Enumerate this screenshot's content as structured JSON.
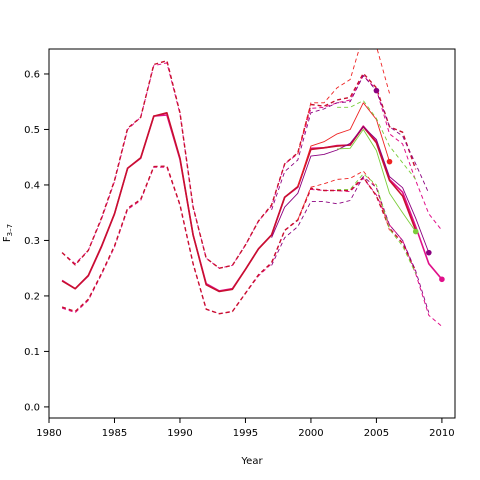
{
  "chart_data": {
    "type": "line",
    "title": "",
    "xlabel": "Year",
    "ylabel": "F3-7",
    "ylabel_main": "F",
    "ylabel_sub": "3–7",
    "xlim": [
      1980,
      2011
    ],
    "ylim": [
      -0.02,
      0.645
    ],
    "xticks": [
      1980,
      1985,
      1990,
      1995,
      2000,
      2005,
      2010
    ],
    "yticks": [
      0.0,
      0.1,
      0.2,
      0.3,
      0.4,
      0.5,
      0.6
    ],
    "xtick_labels": [
      "1980",
      "1985",
      "1990",
      "1995",
      "2000",
      "2005",
      "2010"
    ],
    "ytick_labels": [
      "0.0",
      "0.1",
      "0.2",
      "0.3",
      "0.4",
      "0.5",
      "0.6"
    ],
    "grid": false,
    "legend": "none",
    "colors": {
      "crimson": "#c8102e",
      "red": "#ee2222",
      "magenta": "#e0108a",
      "purple": "#8b0080",
      "green": "#7ccd3c"
    },
    "series": [
      {
        "color": "magenta",
        "style": "solid",
        "width": 1.6,
        "x": [
          1981,
          1982,
          1983,
          1984,
          1985,
          1986,
          1987,
          1988,
          1989,
          1990,
          1991,
          1992,
          1993,
          1994,
          1995,
          1996,
          1997,
          1998,
          1999,
          2000,
          2001,
          2002,
          2003,
          2004,
          2005,
          2006,
          2007,
          2008,
          2009,
          2010
        ],
        "y": [
          0.228,
          0.213,
          0.236,
          0.288,
          0.348,
          0.43,
          0.448,
          0.524,
          0.526,
          0.446,
          0.31,
          0.222,
          0.209,
          0.213,
          0.248,
          0.285,
          0.31,
          0.378,
          0.396,
          0.466,
          0.467,
          0.471,
          0.472,
          0.506,
          0.478,
          0.41,
          0.387,
          0.325,
          0.258,
          0.23
        ],
        "end_point": true
      },
      {
        "color": "magenta",
        "style": "dashed",
        "width": 1.0,
        "x": [
          1981,
          1982,
          1983,
          1984,
          1985,
          1986,
          1987,
          1988,
          1989,
          1990,
          1991,
          1992,
          1993,
          1994,
          1995,
          1996,
          1997,
          1998,
          1999,
          2000,
          2001,
          2002,
          2003,
          2004,
          2005,
          2006,
          2007,
          2008,
          2009,
          2010
        ],
        "y": [
          0.278,
          0.258,
          0.282,
          0.338,
          0.406,
          0.5,
          0.522,
          0.615,
          0.62,
          0.528,
          0.36,
          0.268,
          0.25,
          0.255,
          0.292,
          0.335,
          0.362,
          0.438,
          0.456,
          0.538,
          0.54,
          0.548,
          0.553,
          0.597,
          0.572,
          0.492,
          0.474,
          0.408,
          0.348,
          0.318
        ]
      },
      {
        "color": "magenta",
        "style": "dashed",
        "width": 1.0,
        "x": [
          1981,
          1982,
          1983,
          1984,
          1985,
          1986,
          1987,
          1988,
          1989,
          1990,
          1991,
          1992,
          1993,
          1994,
          1995,
          1996,
          1997,
          1998,
          1999,
          2000,
          2001,
          2002,
          2003,
          2004,
          2005,
          2006,
          2007,
          2008,
          2009,
          2010
        ],
        "y": [
          0.178,
          0.17,
          0.192,
          0.238,
          0.288,
          0.356,
          0.372,
          0.432,
          0.432,
          0.363,
          0.258,
          0.176,
          0.168,
          0.172,
          0.205,
          0.236,
          0.258,
          0.318,
          0.336,
          0.392,
          0.39,
          0.39,
          0.388,
          0.412,
          0.382,
          0.328,
          0.3,
          0.24,
          0.165,
          0.145
        ]
      },
      {
        "color": "crimson",
        "style": "solid",
        "width": 1.6,
        "x": [
          1981,
          1982,
          1983,
          1984,
          1985,
          1986,
          1987,
          1988,
          1989,
          1990,
          1991,
          1992,
          1993,
          1994,
          1995,
          1996,
          1997,
          1998,
          1999,
          2000,
          2001,
          2002,
          2003,
          2004,
          2005,
          2006,
          2007,
          2008
        ],
        "y": [
          0.227,
          0.213,
          0.237,
          0.289,
          0.348,
          0.43,
          0.449,
          0.524,
          0.53,
          0.448,
          0.31,
          0.22,
          0.208,
          0.212,
          0.248,
          0.285,
          0.31,
          0.378,
          0.397,
          0.464,
          0.467,
          0.47,
          0.472,
          0.505,
          0.476,
          0.408,
          0.38,
          0.318
        ]
      },
      {
        "color": "crimson",
        "style": "dashed",
        "width": 1.4,
        "x": [
          1981,
          1982,
          1983,
          1984,
          1985,
          1986,
          1987,
          1988,
          1989,
          1990,
          1991,
          1992,
          1993,
          1994,
          1995,
          1996,
          1997,
          1998,
          1999,
          2000,
          2001,
          2002,
          2003,
          2004,
          2005,
          2006,
          2007,
          2008
        ],
        "y": [
          0.278,
          0.256,
          0.282,
          0.34,
          0.408,
          0.502,
          0.522,
          0.617,
          0.624,
          0.53,
          0.36,
          0.268,
          0.25,
          0.255,
          0.292,
          0.335,
          0.364,
          0.438,
          0.458,
          0.545,
          0.542,
          0.553,
          0.558,
          0.601,
          0.575,
          0.505,
          0.495,
          0.428
        ]
      },
      {
        "color": "crimson",
        "style": "dashed",
        "width": 1.4,
        "x": [
          1981,
          1982,
          1983,
          1984,
          1985,
          1986,
          1987,
          1988,
          1989,
          1990,
          1991,
          1992,
          1993,
          1994,
          1995,
          1996,
          1997,
          1998,
          1999,
          2000,
          2001,
          2002,
          2003,
          2004,
          2005,
          2006,
          2007,
          2008
        ],
        "y": [
          0.18,
          0.172,
          0.194,
          0.24,
          0.29,
          0.358,
          0.374,
          0.433,
          0.434,
          0.364,
          0.258,
          0.176,
          0.168,
          0.172,
          0.205,
          0.238,
          0.26,
          0.318,
          0.337,
          0.394,
          0.39,
          0.39,
          0.39,
          0.414,
          0.38,
          0.322,
          0.295,
          0.245
        ]
      },
      {
        "color": "red",
        "style": "solid",
        "width": 0.9,
        "x": [
          1999,
          2000,
          2001,
          2002,
          2003,
          2004,
          2005,
          2006
        ],
        "y": [
          0.397,
          0.47,
          0.478,
          0.492,
          0.5,
          0.548,
          0.518,
          0.442
        ],
        "end_point": true
      },
      {
        "color": "red",
        "style": "dashed",
        "width": 0.9,
        "x": [
          1999,
          2000,
          2001,
          2002,
          2003,
          2004,
          2005,
          2006
        ],
        "y": [
          0.456,
          0.548,
          0.548,
          0.575,
          0.59,
          0.67,
          0.65,
          0.565
        ]
      },
      {
        "color": "red",
        "style": "dashed",
        "width": 0.9,
        "x": [
          1999,
          2000,
          2001,
          2002,
          2003,
          2004,
          2005,
          2006
        ],
        "y": [
          0.337,
          0.396,
          0.402,
          0.41,
          0.412,
          0.425,
          0.395,
          0.318
        ]
      },
      {
        "color": "purple",
        "style": "solid",
        "width": 0.9,
        "x": [
          1997,
          1998,
          1999,
          2000,
          2001,
          2002,
          2003,
          2004,
          2005,
          2006,
          2007,
          2008,
          2009
        ],
        "y": [
          0.305,
          0.36,
          0.385,
          0.452,
          0.455,
          0.463,
          0.475,
          0.505,
          0.482,
          0.415,
          0.395,
          0.34,
          0.278
        ],
        "end_point": true
      },
      {
        "color": "purple",
        "style": "dashed",
        "width": 0.9,
        "x": [
          1997,
          1998,
          1999,
          2000,
          2001,
          2002,
          2003,
          2004,
          2005,
          2006,
          2007,
          2008,
          2009
        ],
        "y": [
          0.355,
          0.424,
          0.445,
          0.53,
          0.537,
          0.548,
          0.55,
          0.597,
          0.57,
          0.505,
          0.488,
          0.438,
          0.385
        ],
        "end_point_index": 8
      },
      {
        "color": "purple",
        "style": "dashed",
        "width": 0.9,
        "x": [
          1997,
          1998,
          1999,
          2000,
          2001,
          2002,
          2003,
          2004,
          2005,
          2006,
          2007,
          2008,
          2009
        ],
        "y": [
          0.255,
          0.305,
          0.325,
          0.37,
          0.37,
          0.366,
          0.372,
          0.415,
          0.395,
          0.328,
          0.3,
          0.245,
          0.17
        ]
      },
      {
        "color": "green",
        "style": "solid",
        "width": 0.9,
        "x": [
          2002,
          2003,
          2004,
          2005,
          2006,
          2007,
          2008
        ],
        "y": [
          0.465,
          0.466,
          0.5,
          0.462,
          0.385,
          0.35,
          0.316
        ],
        "end_point": true
      },
      {
        "color": "green",
        "style": "dashed",
        "width": 0.9,
        "x": [
          2002,
          2003,
          2004,
          2005,
          2006,
          2007,
          2008
        ],
        "y": [
          0.54,
          0.54,
          0.552,
          0.52,
          0.47,
          0.44,
          0.41
        ]
      },
      {
        "color": "green",
        "style": "dashed",
        "width": 0.9,
        "x": [
          2002,
          2003,
          2004,
          2005,
          2006,
          2007,
          2008
        ],
        "y": [
          0.392,
          0.392,
          0.42,
          0.4,
          0.32,
          0.29,
          0.24
        ]
      }
    ]
  }
}
